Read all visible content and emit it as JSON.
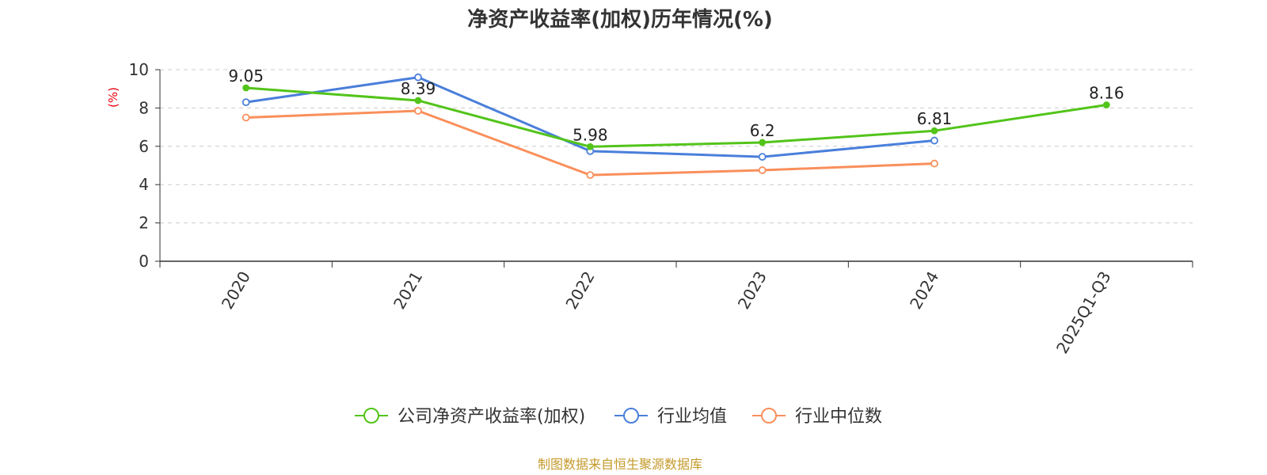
{
  "chart_data": {
    "type": "line",
    "title": "净资产收益率(加权)历年情况(%)",
    "ylabel": "(%)",
    "ylim": [
      0,
      10
    ],
    "yticks": [
      0,
      2,
      4,
      6,
      8,
      10
    ],
    "grid": true,
    "categories": [
      "2020",
      "2021",
      "2022",
      "2023",
      "2024",
      "2025Q1-Q3"
    ],
    "series": [
      {
        "name": "公司净资产收益率(加权)",
        "color": "#52c41a",
        "values": [
          9.05,
          8.39,
          5.98,
          6.2,
          6.81,
          8.16
        ],
        "labels": [
          "9.05",
          "8.39",
          "5.98",
          "6.2",
          "6.81",
          "8.16"
        ]
      },
      {
        "name": "行业均值",
        "color": "#4a7fdb",
        "values": [
          8.3,
          9.6,
          5.75,
          5.45,
          6.3,
          null
        ]
      },
      {
        "name": "行业中位数",
        "color": "#f98f5b",
        "values": [
          7.5,
          7.85,
          4.5,
          4.75,
          5.1,
          null
        ]
      }
    ],
    "legend_position": "bottom"
  },
  "colors": {
    "axis": "#333333",
    "grid": "#cccccc",
    "unit": "#e8000b",
    "source": "#c49a2a"
  },
  "source_text": "制图数据来自恒生聚源数据库"
}
